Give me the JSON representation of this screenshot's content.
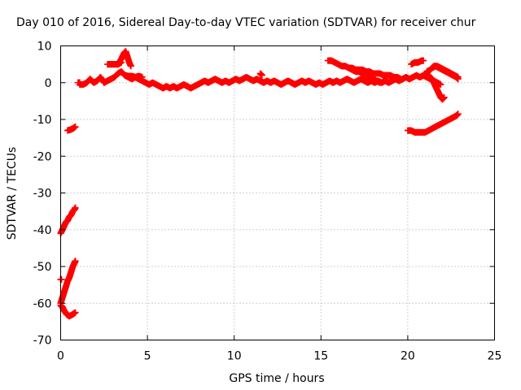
{
  "chart_data": {
    "type": "scatter",
    "title": "Day 010 of 2016, Sidereal Day-to-day VTEC variation (SDTVAR) for receiver chur",
    "xlabel": "GPS time / hours",
    "ylabel": "SDTVAR / TECUs",
    "xlim": [
      0,
      25
    ],
    "ylim": [
      -70,
      10
    ],
    "xticks": [
      0,
      5,
      10,
      15,
      20,
      25
    ],
    "yticks": [
      -70,
      -60,
      -50,
      -40,
      -30,
      -20,
      -10,
      0,
      10
    ],
    "grid": true,
    "marker": "+",
    "series": [
      {
        "name": "SDTVAR",
        "color": "#ff0000",
        "segments": [
          [
            [
              0.0,
              -53.5
            ],
            [
              0.05,
              -53.5
            ]
          ],
          [
            [
              0.0,
              -60.5
            ],
            [
              0.1,
              -61.0
            ],
            [
              0.2,
              -62.0
            ],
            [
              0.35,
              -63.0
            ],
            [
              0.5,
              -63.5
            ],
            [
              0.7,
              -63.0
            ],
            [
              0.85,
              -62.5
            ]
          ],
          [
            [
              0.0,
              -60.0
            ],
            [
              0.1,
              -58.5
            ],
            [
              0.2,
              -57.0
            ],
            [
              0.3,
              -55.5
            ],
            [
              0.4,
              -54.0
            ],
            [
              0.5,
              -53.0
            ],
            [
              0.6,
              -51.5
            ],
            [
              0.7,
              -50.0
            ],
            [
              0.8,
              -49.0
            ],
            [
              0.85,
              -48.5
            ]
          ],
          [
            [
              0.0,
              -41.0
            ],
            [
              0.1,
              -40.0
            ],
            [
              0.2,
              -39.0
            ],
            [
              0.3,
              -38.0
            ],
            [
              0.4,
              -37.5
            ],
            [
              0.5,
              -36.5
            ],
            [
              0.6,
              -36.0
            ],
            [
              0.7,
              -35.0
            ],
            [
              0.8,
              -34.5
            ],
            [
              0.85,
              -34.0
            ]
          ],
          [
            [
              0.4,
              -13.0
            ],
            [
              0.55,
              -12.8
            ],
            [
              0.7,
              -12.5
            ],
            [
              0.85,
              -12.0
            ]
          ],
          [
            [
              1.1,
              -0.5
            ],
            [
              1.3,
              -0.5
            ],
            [
              1.5,
              0.0
            ],
            [
              1.7,
              1.0
            ],
            [
              1.9,
              0.0
            ],
            [
              2.1,
              0.5
            ],
            [
              2.3,
              1.5
            ],
            [
              2.5,
              0.0
            ],
            [
              2.7,
              0.5
            ],
            [
              2.9,
              1.0
            ],
            [
              3.1,
              1.5
            ],
            [
              3.3,
              2.5
            ],
            [
              3.5,
              3.0
            ],
            [
              3.7,
              2.0
            ],
            [
              3.9,
              1.5
            ],
            [
              4.1,
              1.0
            ],
            [
              4.3,
              1.5
            ],
            [
              4.5,
              1.0
            ],
            [
              4.7,
              0.5
            ],
            [
              4.9,
              0.0
            ],
            [
              5.1,
              -0.5
            ],
            [
              5.3,
              0.0
            ],
            [
              5.5,
              -0.5
            ],
            [
              5.7,
              -1.0
            ],
            [
              5.9,
              -1.5
            ],
            [
              6.1,
              -1.0
            ],
            [
              6.3,
              -1.5
            ],
            [
              6.5,
              -1.0
            ],
            [
              6.7,
              -1.5
            ],
            [
              6.9,
              -1.0
            ],
            [
              7.1,
              -0.5
            ],
            [
              7.3,
              -1.0
            ],
            [
              7.5,
              -1.5
            ],
            [
              7.7,
              -1.0
            ],
            [
              7.9,
              -0.5
            ],
            [
              8.1,
              0.0
            ],
            [
              8.3,
              0.5
            ],
            [
              8.5,
              0.0
            ],
            [
              8.7,
              0.5
            ],
            [
              8.9,
              1.0
            ],
            [
              9.1,
              0.5
            ],
            [
              9.3,
              0.0
            ],
            [
              9.5,
              0.5
            ],
            [
              9.7,
              0.0
            ],
            [
              9.9,
              0.5
            ],
            [
              10.1,
              1.0
            ],
            [
              10.3,
              0.5
            ],
            [
              10.5,
              1.0
            ],
            [
              10.7,
              1.5
            ],
            [
              10.9,
              1.0
            ],
            [
              11.1,
              0.5
            ],
            [
              11.3,
              1.0
            ],
            [
              11.5,
              0.5
            ],
            [
              11.7,
              0.0
            ],
            [
              11.9,
              0.5
            ],
            [
              12.1,
              0.0
            ],
            [
              12.3,
              0.5
            ],
            [
              12.5,
              0.0
            ],
            [
              12.7,
              -0.5
            ],
            [
              12.9,
              0.0
            ],
            [
              13.1,
              0.5
            ],
            [
              13.3,
              0.0
            ],
            [
              13.5,
              -0.5
            ],
            [
              13.7,
              0.0
            ],
            [
              13.9,
              0.5
            ],
            [
              14.1,
              0.0
            ],
            [
              14.3,
              0.5
            ],
            [
              14.5,
              0.0
            ],
            [
              14.7,
              -0.5
            ],
            [
              14.9,
              0.0
            ],
            [
              15.1,
              -0.5
            ],
            [
              15.3,
              0.0
            ],
            [
              15.5,
              0.5
            ],
            [
              15.7,
              0.0
            ],
            [
              15.9,
              0.5
            ],
            [
              16.1,
              0.0
            ],
            [
              16.3,
              0.5
            ],
            [
              16.5,
              1.0
            ],
            [
              16.7,
              0.5
            ],
            [
              16.9,
              0.0
            ],
            [
              17.1,
              0.5
            ],
            [
              17.3,
              1.0
            ],
            [
              17.5,
              0.5
            ],
            [
              17.7,
              0.0
            ],
            [
              17.9,
              0.5
            ],
            [
              18.1,
              0.0
            ],
            [
              18.3,
              0.5
            ],
            [
              18.5,
              0.0
            ],
            [
              18.7,
              0.5
            ],
            [
              18.9,
              0.0
            ],
            [
              19.1,
              0.5
            ],
            [
              19.3,
              1.0
            ],
            [
              19.5,
              0.5
            ],
            [
              19.7,
              1.0
            ],
            [
              19.9,
              1.5
            ],
            [
              20.1,
              1.0
            ],
            [
              20.3,
              1.5
            ],
            [
              20.5,
              2.0
            ],
            [
              20.7,
              1.5
            ],
            [
              20.9,
              2.0
            ],
            [
              21.1,
              1.5
            ],
            [
              21.3,
              1.0
            ],
            [
              21.5,
              0.5
            ],
            [
              21.7,
              0.0
            ],
            [
              21.9,
              -0.5
            ]
          ],
          [
            [
              1.0,
              0.0
            ],
            [
              1.1,
              0.0
            ]
          ],
          [
            [
              2.7,
              5.0
            ],
            [
              2.9,
              5.0
            ],
            [
              3.1,
              5.0
            ],
            [
              3.3,
              5.0
            ],
            [
              3.5,
              5.5
            ]
          ],
          [
            [
              3.3,
              5.0
            ],
            [
              3.5,
              6.5
            ],
            [
              3.65,
              8.0
            ],
            [
              3.75,
              8.5
            ],
            [
              3.85,
              7.0
            ],
            [
              3.95,
              5.5
            ],
            [
              4.05,
              4.5
            ]
          ],
          [
            [
              3.7,
              2.0
            ],
            [
              3.9,
              1.8
            ],
            [
              4.1,
              1.8
            ],
            [
              4.3,
              1.5
            ],
            [
              4.5,
              1.8
            ],
            [
              4.7,
              1.5
            ]
          ],
          [
            [
              11.5,
              2.5
            ],
            [
              11.6,
              2.0
            ]
          ],
          [
            [
              15.4,
              6.0
            ],
            [
              15.6,
              6.0
            ],
            [
              15.8,
              5.5
            ],
            [
              16.0,
              5.0
            ],
            [
              16.2,
              4.5
            ],
            [
              16.4,
              4.5
            ],
            [
              16.6,
              4.0
            ],
            [
              16.8,
              3.5
            ],
            [
              17.0,
              3.0
            ],
            [
              17.2,
              3.0
            ],
            [
              17.4,
              2.5
            ],
            [
              17.6,
              2.0
            ],
            [
              17.8,
              1.5
            ],
            [
              18.0,
              1.0
            ],
            [
              18.2,
              0.5
            ],
            [
              18.4,
              0.0
            ]
          ],
          [
            [
              16.6,
              4.0
            ],
            [
              16.8,
              4.0
            ],
            [
              17.0,
              3.5
            ],
            [
              17.2,
              3.5
            ],
            [
              17.4,
              3.5
            ],
            [
              17.6,
              3.0
            ],
            [
              17.8,
              3.0
            ],
            [
              18.0,
              2.5
            ],
            [
              18.2,
              2.5
            ],
            [
              18.4,
              2.5
            ],
            [
              18.6,
              2.0
            ],
            [
              18.8,
              2.0
            ],
            [
              19.0,
              2.0
            ],
            [
              19.2,
              1.5
            ],
            [
              19.4,
              1.5
            ],
            [
              19.6,
              1.0
            ]
          ],
          [
            [
              20.2,
              5.0
            ],
            [
              20.4,
              5.5
            ],
            [
              20.6,
              5.5
            ],
            [
              20.8,
              6.0
            ],
            [
              20.9,
              6.0
            ]
          ],
          [
            [
              20.0,
              -13.0
            ],
            [
              20.2,
              -13.0
            ],
            [
              20.4,
              -13.5
            ],
            [
              20.6,
              -13.5
            ],
            [
              20.8,
              -13.5
            ],
            [
              21.0,
              -13.5
            ],
            [
              21.2,
              -13.0
            ],
            [
              21.4,
              -12.5
            ],
            [
              21.6,
              -12.0
            ],
            [
              21.8,
              -11.5
            ],
            [
              22.0,
              -11.0
            ],
            [
              22.2,
              -10.5
            ],
            [
              22.4,
              -10.0
            ],
            [
              22.6,
              -9.5
            ],
            [
              22.8,
              -9.0
            ],
            [
              22.9,
              -8.5
            ]
          ],
          [
            [
              21.0,
              2.5
            ],
            [
              21.2,
              2.0
            ],
            [
              21.4,
              1.0
            ],
            [
              21.5,
              0.0
            ],
            [
              21.6,
              -1.0
            ],
            [
              21.7,
              -2.0
            ],
            [
              21.8,
              -3.0
            ],
            [
              21.9,
              -4.0
            ],
            [
              22.0,
              -4.5
            ],
            [
              22.1,
              -4.0
            ]
          ],
          [
            [
              21.4,
              4.0
            ],
            [
              21.6,
              4.5
            ],
            [
              21.8,
              4.0
            ],
            [
              22.0,
              3.5
            ],
            [
              22.2,
              3.0
            ],
            [
              22.4,
              2.5
            ],
            [
              22.6,
              2.0
            ],
            [
              22.8,
              1.5
            ],
            [
              22.9,
              1.0
            ]
          ],
          [
            [
              21.1,
              3.0
            ],
            [
              21.3,
              3.5
            ],
            [
              21.5,
              4.5
            ],
            [
              21.7,
              4.5
            ],
            [
              21.9,
              4.0
            ],
            [
              22.1,
              3.5
            ],
            [
              22.3,
              3.0
            ],
            [
              22.5,
              2.5
            ],
            [
              22.7,
              2.0
            ],
            [
              22.9,
              1.5
            ]
          ]
        ]
      }
    ]
  }
}
